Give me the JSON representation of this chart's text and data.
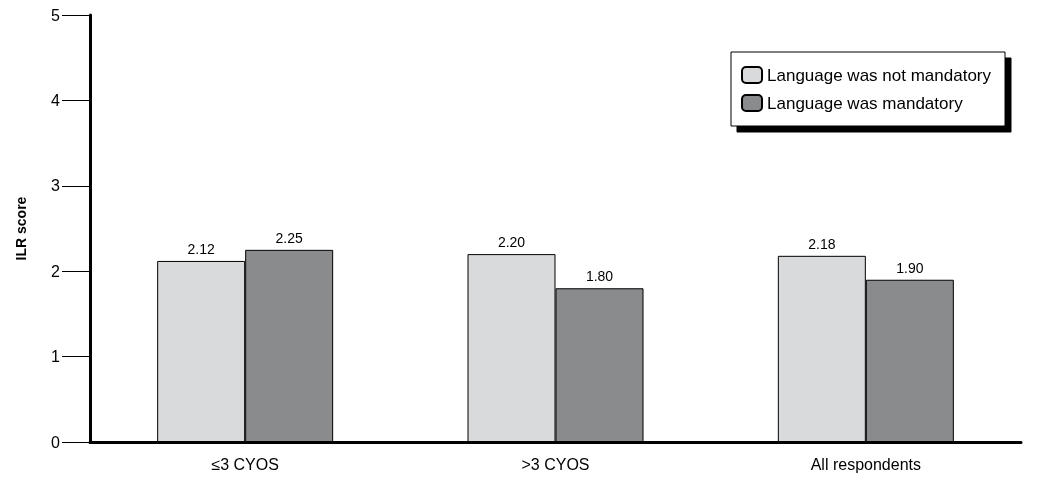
{
  "chart_data": {
    "type": "bar",
    "ylabel": "ILR score",
    "categories": [
      "≤3 CYOS",
      ">3 CYOS",
      "All respondents"
    ],
    "series": [
      {
        "name": "Language was not mandatory",
        "color": "#d9dadb",
        "values": [
          2.12,
          2.2,
          2.18
        ],
        "value_labels": [
          "2.12",
          "2.20",
          "2.18"
        ]
      },
      {
        "name": "Language was mandatory",
        "color": "#8a8b8d",
        "values": [
          2.25,
          1.8,
          1.9
        ],
        "value_labels": [
          "2.25",
          "1.80",
          "1.90"
        ]
      }
    ],
    "ylim": [
      0,
      5
    ],
    "yticks": [
      0,
      1,
      2,
      3,
      4,
      5
    ],
    "grid": false,
    "legend": "top right"
  }
}
